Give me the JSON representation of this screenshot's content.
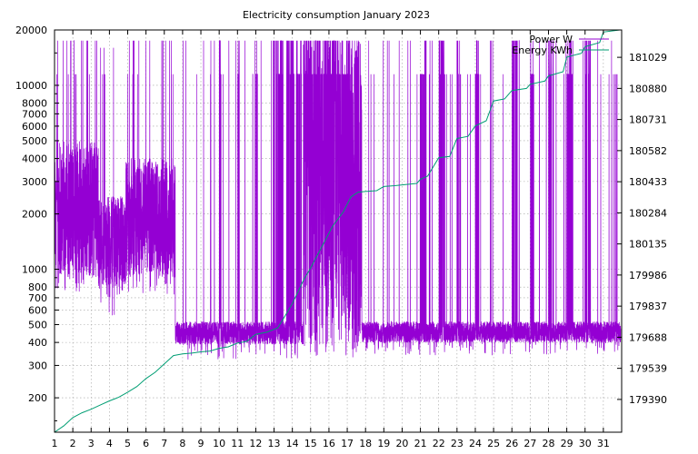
{
  "chart_data": {
    "type": "line",
    "title": "Electricity consumption January 2023",
    "xlabel": "",
    "ylabel": "",
    "y2label": "",
    "grid": true,
    "legend_position": "top-right",
    "x_range": [
      1,
      32
    ],
    "x_ticks": [
      "1",
      "2",
      "3",
      "4",
      "5",
      "6",
      "7",
      "8",
      "9",
      "10",
      "11",
      "12",
      "13",
      "14",
      "15",
      "16",
      "17",
      "18",
      "19",
      "20",
      "21",
      "22",
      "23",
      "24",
      "25",
      "26",
      "27",
      "28",
      "29",
      "30",
      "31"
    ],
    "y_left": {
      "scale": "log",
      "range": [
        130,
        20000
      ],
      "ticks": [
        200,
        300,
        400,
        500,
        600,
        700,
        800,
        1000,
        2000,
        3000,
        4000,
        5000,
        6000,
        7000,
        8000,
        10000,
        20000
      ]
    },
    "y_right": {
      "scale": "linear",
      "range": [
        179233,
        181160
      ],
      "ticks": [
        179390,
        179539,
        179688,
        179837,
        179986,
        180135,
        180284,
        180433,
        180582,
        180731,
        180880,
        181029
      ]
    },
    "series": [
      {
        "name": "Power W",
        "axis": "left",
        "color": "#9400d3",
        "segments": [
          {
            "from": 1.0,
            "to": 3.4,
            "min": 750,
            "max": 17500,
            "base_low": 900,
            "base_high": 5000
          },
          {
            "from": 3.4,
            "to": 4.9,
            "min": 550,
            "max": 16000,
            "base_low": 800,
            "base_high": 2500
          },
          {
            "from": 4.9,
            "to": 7.6,
            "min": 700,
            "max": 17500,
            "base_low": 900,
            "base_high": 4000
          },
          {
            "from": 7.6,
            "to": 14.6,
            "min": 320,
            "max": 17500,
            "base_low": 390,
            "base_high": 520
          },
          {
            "from": 14.6,
            "to": 17.8,
            "min": 330,
            "max": 17500,
            "base_low": 400,
            "base_high": 17500
          },
          {
            "from": 17.8,
            "to": 32.0,
            "min": 340,
            "max": 17500,
            "base_low": 400,
            "base_high": 520
          }
        ],
        "saturated_bands": [
          [
            10.0,
            10.1
          ],
          [
            11.0,
            11.1
          ],
          [
            12.0,
            12.1
          ],
          [
            13.0,
            13.5
          ],
          [
            13.7,
            14.1
          ],
          [
            14.2,
            14.5
          ],
          [
            14.6,
            16.6
          ],
          [
            16.7,
            17.2
          ],
          [
            21.0,
            21.3
          ],
          [
            22.0,
            22.3
          ],
          [
            23.0,
            23.2
          ],
          [
            24.0,
            24.2
          ],
          [
            26.0,
            26.3
          ],
          [
            27.0,
            27.2
          ],
          [
            28.0,
            28.3
          ],
          [
            29.0,
            29.3
          ],
          [
            30.0,
            30.3
          ]
        ]
      },
      {
        "name": "Energy KWh",
        "axis": "right",
        "color": "#009e73",
        "points": [
          [
            1.0,
            179233
          ],
          [
            1.5,
            179263
          ],
          [
            2.0,
            179303
          ],
          [
            2.5,
            179326
          ],
          [
            3.0,
            179343
          ],
          [
            3.5,
            179363
          ],
          [
            4.0,
            179383
          ],
          [
            4.5,
            179400
          ],
          [
            5.0,
            179425
          ],
          [
            5.5,
            179452
          ],
          [
            6.0,
            179490
          ],
          [
            6.5,
            179520
          ],
          [
            7.0,
            179560
          ],
          [
            7.5,
            179600
          ],
          [
            8.0,
            179608
          ],
          [
            8.5,
            179612
          ],
          [
            9.0,
            179618
          ],
          [
            9.5,
            179622
          ],
          [
            10.0,
            179635
          ],
          [
            10.5,
            179642
          ],
          [
            11.0,
            179660
          ],
          [
            11.5,
            179668
          ],
          [
            12.0,
            179702
          ],
          [
            12.6,
            179712
          ],
          [
            13.2,
            179733
          ],
          [
            13.6,
            179790
          ],
          [
            14.0,
            179850
          ],
          [
            14.6,
            179960
          ],
          [
            15.0,
            180020
          ],
          [
            15.6,
            180120
          ],
          [
            16.2,
            180220
          ],
          [
            16.8,
            180290
          ],
          [
            17.2,
            180360
          ],
          [
            17.6,
            180383
          ],
          [
            18.0,
            180386
          ],
          [
            18.6,
            180390
          ],
          [
            19.0,
            180410
          ],
          [
            19.6,
            180414
          ],
          [
            20.0,
            180418
          ],
          [
            20.8,
            180425
          ],
          [
            21.0,
            180445
          ],
          [
            21.4,
            180460
          ],
          [
            22.0,
            180548
          ],
          [
            22.6,
            180554
          ],
          [
            23.0,
            180640
          ],
          [
            23.6,
            180650
          ],
          [
            24.0,
            180700
          ],
          [
            24.6,
            180725
          ],
          [
            25.0,
            180820
          ],
          [
            25.6,
            180830
          ],
          [
            26.0,
            180870
          ],
          [
            26.8,
            180880
          ],
          [
            27.0,
            180900
          ],
          [
            27.8,
            180915
          ],
          [
            28.0,
            180940
          ],
          [
            28.8,
            180960
          ],
          [
            29.0,
            181030
          ],
          [
            29.8,
            181048
          ],
          [
            30.0,
            181080
          ],
          [
            30.8,
            181100
          ],
          [
            31.0,
            181150
          ],
          [
            31.9,
            181160
          ]
        ]
      }
    ]
  }
}
